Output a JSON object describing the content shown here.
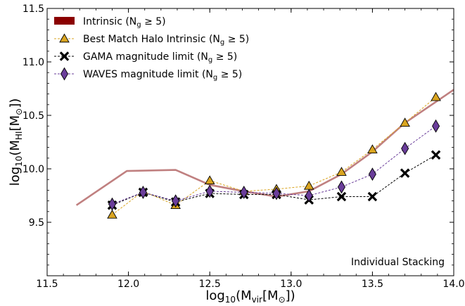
{
  "chart_data": {
    "type": "line",
    "title": "",
    "xlabel": {
      "pre": "log",
      "sub1": "10",
      "mid": "(M",
      "sub2": "vir",
      "mid2": "[M",
      "sym": "⊙",
      "post": "])"
    },
    "ylabel": {
      "pre": "log",
      "sub1": "10",
      "mid": "(M",
      "sub2": "HI",
      "mid2": "[M",
      "sym": "⊙",
      "post": "])"
    },
    "xlim": [
      11.5,
      14.0
    ],
    "ylim": [
      9.0,
      11.5
    ],
    "xticks": [
      "11.5",
      "12.0",
      "12.5",
      "13.0",
      "13.5",
      "14.0"
    ],
    "yticks": [
      "9.5",
      "10.0",
      "10.5",
      "11.0",
      "11.5"
    ],
    "xtick_values": [
      11.5,
      12.0,
      12.5,
      13.0,
      13.5,
      14.0
    ],
    "ytick_values": [
      9.5,
      10.0,
      10.5,
      11.0,
      11.5
    ],
    "grid": false,
    "legend_placement": "top-left",
    "annotation": "Individual Stacking",
    "series": [
      {
        "name": "Intrinsic (N_g ≥ 5)",
        "legend": {
          "pre": "Intrinsic (N",
          "sub": "g",
          "post": " ≥ 5)"
        },
        "style": "thick-line",
        "color": "#c08080",
        "legend_color": "#8b0000",
        "x": [
          11.68,
          11.99,
          12.29,
          12.5,
          12.71,
          12.91,
          13.11,
          13.31,
          13.5,
          13.7,
          14.0
        ],
        "y": [
          9.66,
          9.98,
          9.99,
          9.85,
          9.79,
          9.74,
          9.79,
          9.95,
          10.16,
          10.43,
          10.74
        ]
      },
      {
        "name": "Best Match Halo Intrinsic (N_g ≥ 5)",
        "legend": {
          "pre": "Best Match Halo Intrinsic (N",
          "sub": "g",
          "post": " ≥ 5)"
        },
        "marker": "triangle",
        "color": "#daa520",
        "x": [
          11.9,
          12.09,
          12.29,
          12.5,
          12.71,
          12.91,
          13.11,
          13.31,
          13.5,
          13.7,
          13.89
        ],
        "y": [
          9.57,
          9.79,
          9.66,
          9.89,
          9.79,
          9.81,
          9.84,
          9.97,
          10.18,
          10.43,
          10.67
        ]
      },
      {
        "name": "GAMA magnitude limit (N_g ≥ 5)",
        "legend": {
          "pre": "GAMA magnitude limit (N",
          "sub": "g",
          "post": " ≥ 5)"
        },
        "marker": "x",
        "color": "#000000",
        "x": [
          11.9,
          12.09,
          12.29,
          12.5,
          12.71,
          12.91,
          13.11,
          13.31,
          13.5,
          13.7,
          13.89
        ],
        "y": [
          9.66,
          9.78,
          9.69,
          9.77,
          9.76,
          9.76,
          9.71,
          9.74,
          9.74,
          9.96,
          10.13
        ]
      },
      {
        "name": "WAVES magnitude limit (N_g ≥ 5)",
        "legend": {
          "pre": "WAVES magnitude limit (N",
          "sub": "g",
          "post": " ≥ 5)"
        },
        "marker": "diamond",
        "color": "#6a3d9a",
        "x": [
          11.9,
          12.09,
          12.29,
          12.5,
          12.71,
          12.91,
          13.11,
          13.31,
          13.5,
          13.7,
          13.89
        ],
        "y": [
          9.67,
          9.78,
          9.7,
          9.79,
          9.78,
          9.77,
          9.75,
          9.83,
          9.95,
          10.19,
          10.4
        ]
      }
    ]
  }
}
